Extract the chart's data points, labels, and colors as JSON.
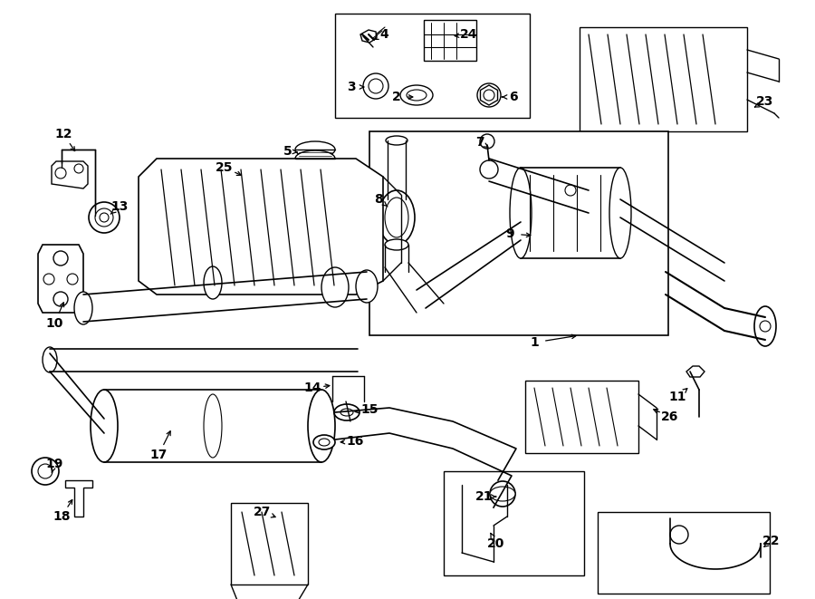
{
  "bg_color": "#ffffff",
  "line_color": "#000000",
  "fig_width": 9.0,
  "fig_height": 6.61,
  "dpi": 100,
  "lw": 1.0,
  "font_size": 10,
  "font_weight": "bold"
}
